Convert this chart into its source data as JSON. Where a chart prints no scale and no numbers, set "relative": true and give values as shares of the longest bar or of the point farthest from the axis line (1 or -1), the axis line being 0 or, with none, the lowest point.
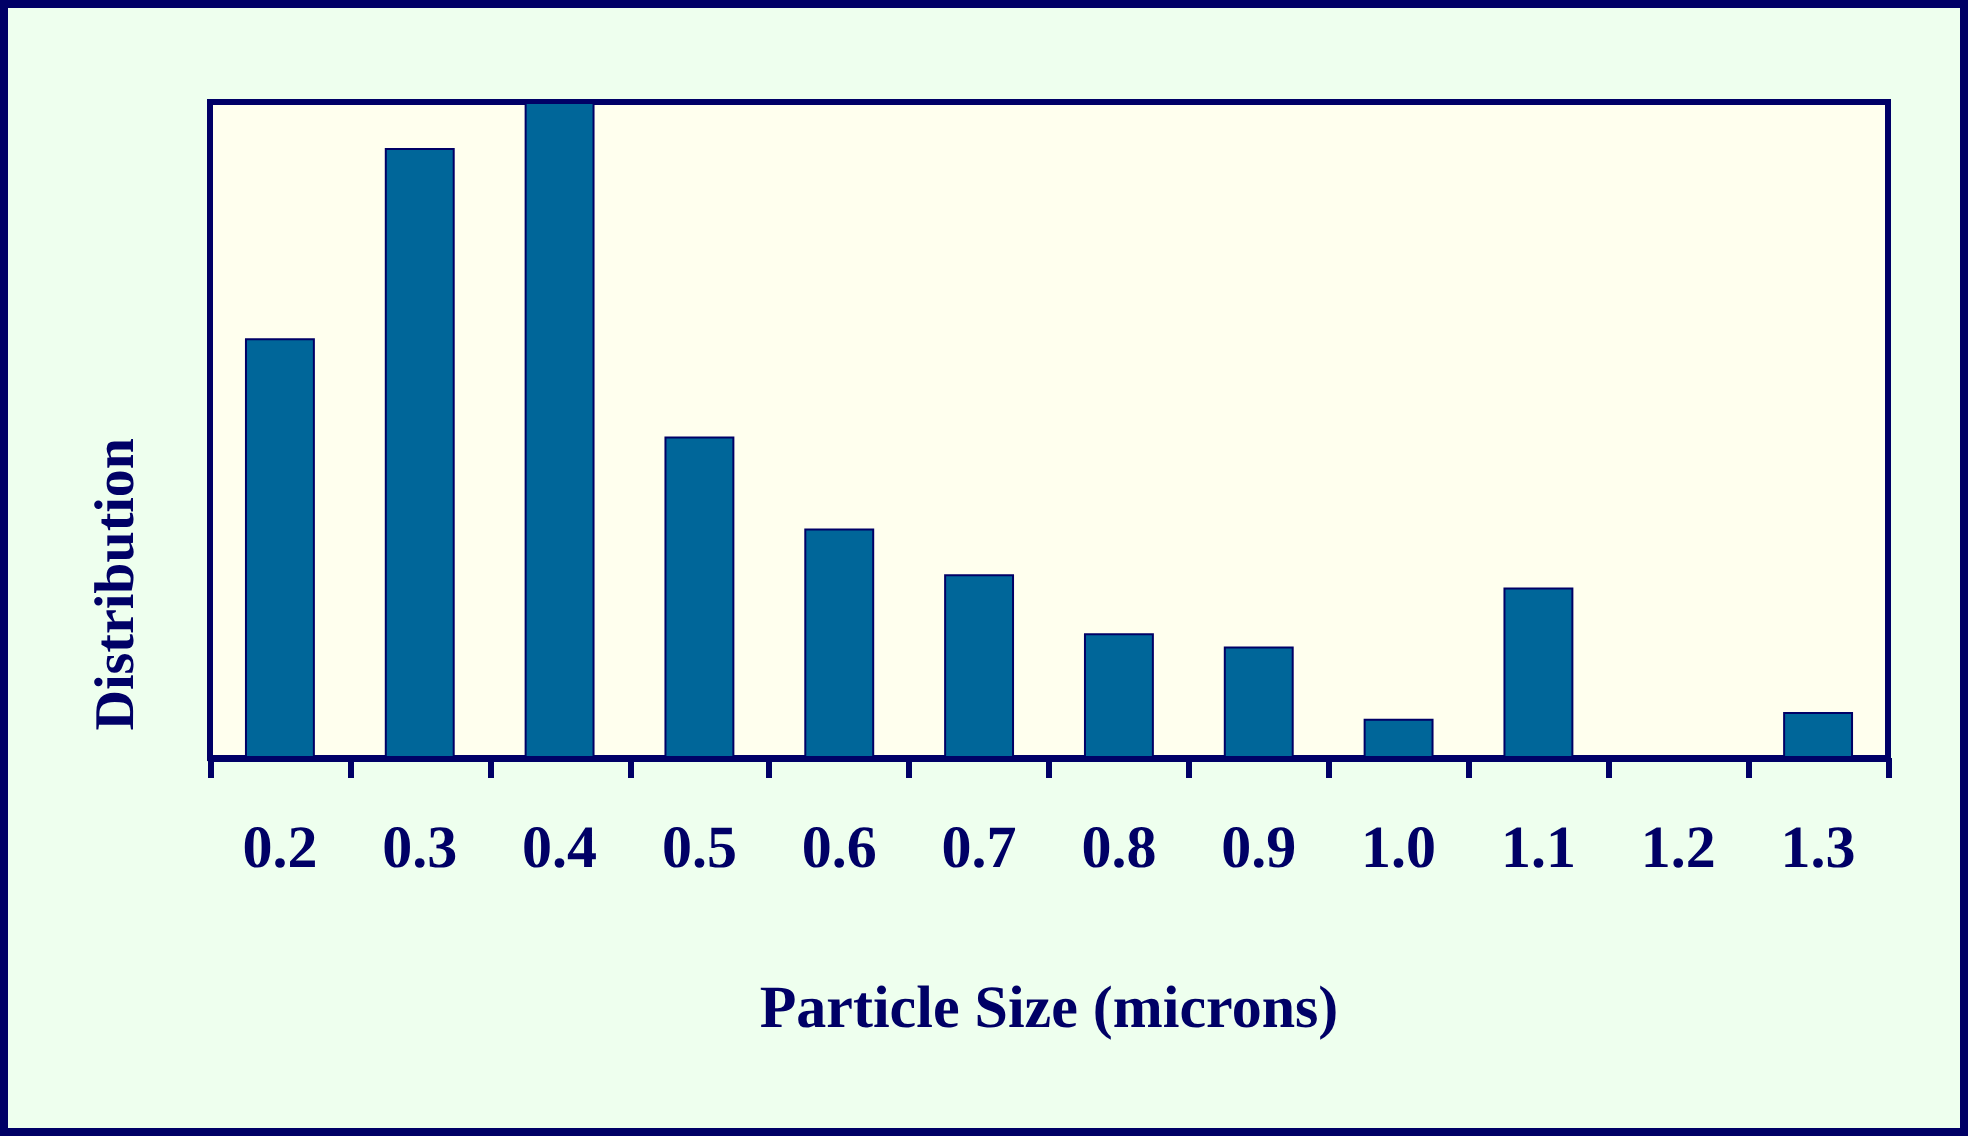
{
  "chart_data": {
    "type": "bar",
    "relative": true,
    "xlabel": "Particle Size (microns)",
    "ylabel": "Distribution",
    "categories": [
      "0.2",
      "0.3",
      "0.4",
      "0.5",
      "0.6",
      "0.7",
      "0.8",
      "0.9",
      "1.0",
      "1.1",
      "1.2",
      "1.3"
    ],
    "values": [
      0.64,
      0.93,
      1,
      0.49,
      0.35,
      0.28,
      0.19,
      0.17,
      0.06,
      0.26,
      0,
      0.07
    ],
    "color": "#006699"
  }
}
